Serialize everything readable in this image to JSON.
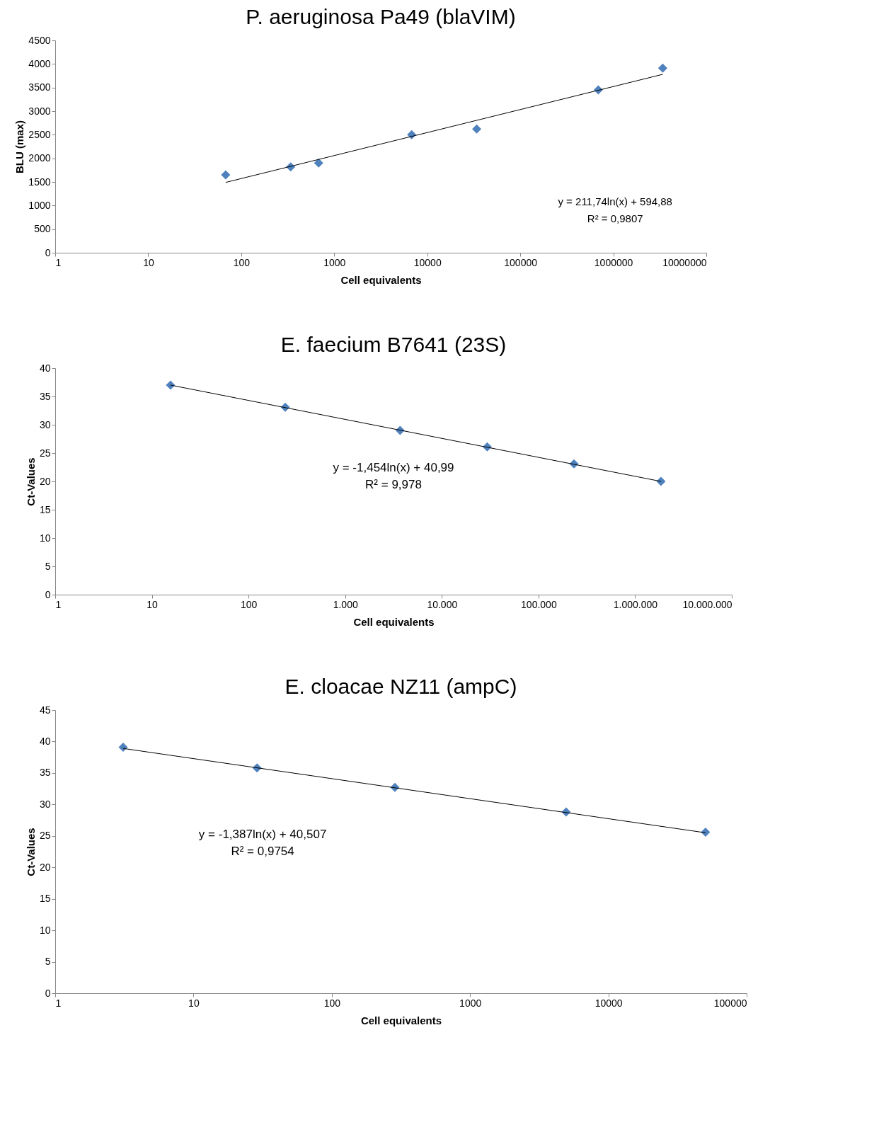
{
  "chart_data": [
    {
      "type": "scatter",
      "title": "P. aeruginosa Pa49 (blaVIM)",
      "xlabel": "Cell equivalents",
      "ylabel": "BLU (max)",
      "log": "x",
      "grid": false,
      "xlim": [
        1,
        10000000
      ],
      "xticks": [
        1,
        10,
        100,
        1000,
        10000,
        100000,
        1000000,
        10000000
      ],
      "ylim": [
        0,
        4500
      ],
      "yticks": [
        0,
        500,
        1000,
        1500,
        2000,
        2500,
        3000,
        3500,
        4000,
        4500
      ],
      "series": [
        {
          "type": "scatter",
          "marker": "diamond",
          "color": "#4f81bd",
          "x": [
            68,
            340,
            680,
            6800,
            34000,
            690000,
            3400000
          ],
          "values": [
            1650,
            1820,
            1900,
            2500,
            2620,
            3450,
            3910
          ]
        },
        {
          "type": "line",
          "color": "#000000",
          "x": [
            68,
            3400000
          ],
          "values": [
            1490,
            3780
          ]
        }
      ],
      "annotations": [
        "y = 211,74ln(x) + 594,88",
        "R² = 0,9807"
      ]
    },
    {
      "type": "scatter",
      "title": "E. faecium B7641 (23S)",
      "xlabel": "Cell equivalents",
      "ylabel": "Ct-Values",
      "log": "x",
      "grid": false,
      "xlim": [
        1,
        10000000
      ],
      "xticks": [
        1,
        10,
        100,
        {
          "value": 1000,
          "label": "1.000"
        },
        {
          "value": 10000,
          "label": "10.000"
        },
        {
          "value": 100000,
          "label": "100.000"
        },
        {
          "value": 1000000,
          "label": "1.000.000"
        },
        {
          "value": 10000000,
          "label": "10.000.000"
        }
      ],
      "ylim": [
        0,
        40
      ],
      "yticks": [
        0,
        5,
        10,
        15,
        20,
        25,
        30,
        35,
        40
      ],
      "series": [
        {
          "type": "scatter",
          "marker": "diamond",
          "color": "#4f81bd",
          "x": [
            15.6,
            240,
            3700,
            29500,
            233000,
            1850000
          ],
          "values": [
            37.0,
            33.1,
            29.0,
            26.1,
            23.1,
            20.0
          ]
        },
        {
          "type": "line",
          "color": "#000000",
          "x": [
            15.6,
            1850000
          ],
          "values": [
            37.0,
            20.0
          ]
        }
      ],
      "annotations": [
        "y = -1,454ln(x) + 40,99",
        "R² = 9,978"
      ]
    },
    {
      "type": "scatter",
      "title": "E. cloacae NZ11 (ampC)",
      "xlabel": "Cell equivalents",
      "ylabel": "Ct-Values",
      "log": "x",
      "grid": false,
      "xlim": [
        1,
        100000
      ],
      "xticks": [
        1,
        10,
        100,
        1000,
        10000,
        100000
      ],
      "ylim": [
        0,
        45
      ],
      "yticks": [
        0,
        5,
        10,
        15,
        20,
        25,
        30,
        35,
        40,
        45
      ],
      "series": [
        {
          "type": "scatter",
          "marker": "diamond",
          "color": "#4f81bd",
          "x": [
            3.1,
            28.8,
            286,
            4950,
            50400
          ],
          "values": [
            39.1,
            35.8,
            32.7,
            28.8,
            25.6
          ]
        },
        {
          "type": "line",
          "color": "#000000",
          "x": [
            3.1,
            50400
          ],
          "values": [
            38.9,
            25.5
          ]
        }
      ],
      "annotations": [
        "y = -1,387ln(x) + 40,507",
        "R² = 0,9754"
      ]
    }
  ]
}
